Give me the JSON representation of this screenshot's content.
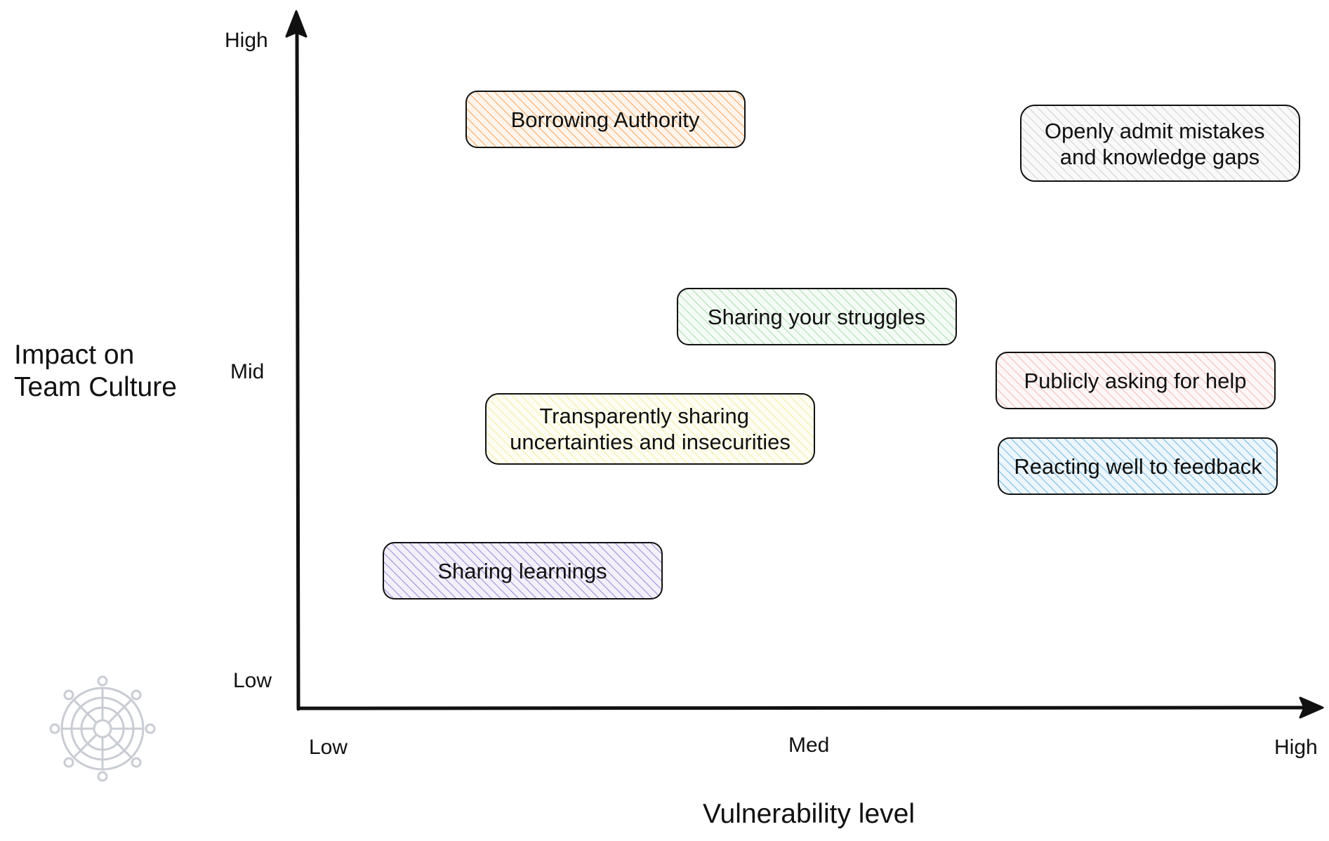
{
  "y_axis": {
    "title_lines": [
      "Impact on",
      "Team Culture"
    ],
    "ticks": {
      "high": "High",
      "mid": "Mid",
      "low": "Low"
    }
  },
  "x_axis": {
    "title": "Vulnerability level",
    "ticks": {
      "low": "Low",
      "med": "Med",
      "high": "High"
    }
  },
  "boxes": [
    {
      "id": "borrowing-authority",
      "lines": [
        "Borrowing Authority"
      ],
      "color": "#f5a45c"
    },
    {
      "id": "openly-admit",
      "lines": [
        "Openly admit mistakes",
        "and knowledge gaps"
      ],
      "color": "#cfcfcf"
    },
    {
      "id": "sharing-struggles",
      "lines": [
        "Sharing your struggles"
      ],
      "color": "#a8dcae"
    },
    {
      "id": "publicly-asking",
      "lines": [
        "Publicly asking for help"
      ],
      "color": "#f2b8b8"
    },
    {
      "id": "transparently-sharing",
      "lines": [
        "Transparently sharing",
        "uncertainties and insecurities"
      ],
      "color": "#f2ee9c"
    },
    {
      "id": "reacting-feedback",
      "lines": [
        "Reacting well to feedback"
      ],
      "color": "#6fb6e3"
    },
    {
      "id": "sharing-learnings",
      "lines": [
        "Sharing learnings"
      ],
      "color": "#9b86d6"
    }
  ],
  "logo": {
    "icon": "dharma-wheel-watermark-icon",
    "color": "#c9ccd3"
  }
}
